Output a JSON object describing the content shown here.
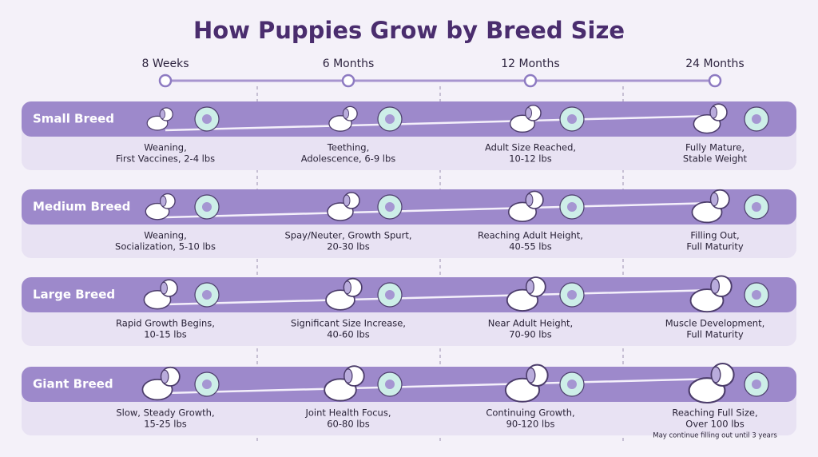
{
  "title": "How Puppies Grow by Breed Size",
  "timeline": [
    "8 Weeks",
    "6 Months",
    "12 Months",
    "24 Months"
  ],
  "rows": [
    {
      "breed": "Small Breed",
      "cells": [
        [
          "Weaning,",
          "First Vaccines, 2-4 lbs"
        ],
        [
          "Teething,",
          "Adolescence, 6-9 lbs"
        ],
        [
          "Adult Size Reached,",
          "10-12 lbs"
        ],
        [
          "Fully Mature,",
          "Stable Weight"
        ]
      ]
    },
    {
      "breed": "Medium Breed",
      "cells": [
        [
          "Weaning,",
          "Socialization, 5-10 lbs"
        ],
        [
          "Spay/Neuter, Growth Spurt,",
          "20-30 lbs"
        ],
        [
          "Reaching Adult Height,",
          "40-55 lbs"
        ],
        [
          "Filling Out,",
          "Full Maturity"
        ]
      ]
    },
    {
      "breed": "Large Breed",
      "cells": [
        [
          "Rapid Growth Begins,",
          "10-15 lbs"
        ],
        [
          "Significant Size Increase,",
          "40-60 lbs"
        ],
        [
          "Near Adult Height,",
          "70-90 lbs"
        ],
        [
          "Muscle Development,",
          "Full Maturity"
        ]
      ]
    },
    {
      "breed": "Giant Breed",
      "cells": [
        [
          "Slow, Steady Growth,",
          "15-25 lbs"
        ],
        [
          "Joint Health Focus,",
          "60-80 lbs"
        ],
        [
          "Continuing Growth,",
          "90-120 lbs"
        ],
        [
          "Reaching Full Size,",
          "Over 100 lbs"
        ]
      ]
    }
  ],
  "note": "May continue filling out until 3 years"
}
